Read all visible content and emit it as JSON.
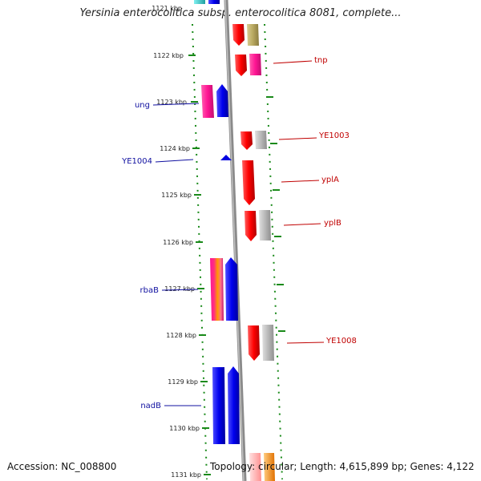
{
  "title": "Yersinia enterocolitica subsp. enterocolitica 8081, complete...",
  "accession": "Accession: NC_008800",
  "summary": "Topology: circular; Length: 4,615,899 bp; Genes: 4,122",
  "ruler_labels": [
    "1121 kbp",
    "1122 kbp",
    "1123 kbp",
    "1124 kbp",
    "1125 kbp",
    "1126 kbp",
    "1127 kbp",
    "1128 kbp",
    "1129 kbp",
    "1130 kbp",
    "1131 kbp"
  ],
  "gene_labels_left": [
    "ung",
    "YE1004",
    "rbaB",
    "nadB"
  ],
  "gene_labels_right": [
    "tnp",
    "YE1003",
    "yplA",
    "yplB",
    "YE1008"
  ],
  "colors": {
    "left_label": "#1010a0",
    "right_label": "#c00000",
    "forward_gene": "#e00000",
    "reverse_gene": "#0000e0",
    "pink_gene": "#ff1493",
    "gray_gene": "#b0b0b0",
    "olive_gene": "#b8a860",
    "tick": "#1a8a1a",
    "backbone": "#8a8a8a"
  }
}
